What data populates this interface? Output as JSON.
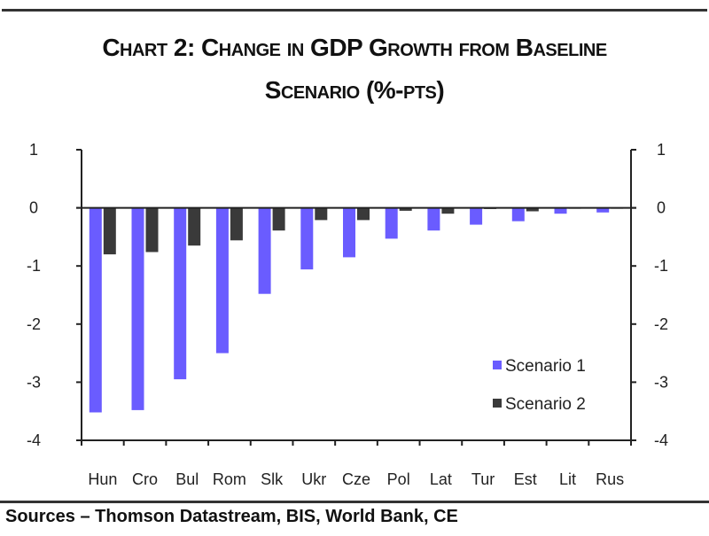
{
  "chart_data": {
    "type": "bar",
    "title": "Chart 2: Change in GDP Growth from Baseline",
    "title_line2": "Scenario (%-pts)",
    "xlabel": "",
    "ylabel": "",
    "ylim": [
      -4,
      1
    ],
    "yticks": [
      1,
      0,
      -1,
      -2,
      -3,
      -4
    ],
    "grid": false,
    "legend_position": "bottom-right",
    "categories": [
      "Hun",
      "Cro",
      "Bul",
      "Rom",
      "Slk",
      "Ukr",
      "Cze",
      "Pol",
      "Lat",
      "Tur",
      "Est",
      "Lit",
      "Rus"
    ],
    "series": [
      {
        "name": "Scenario 1",
        "color": "#6a5cff",
        "values": [
          -3.52,
          -3.48,
          -2.95,
          -2.5,
          -1.48,
          -1.06,
          -0.85,
          -0.53,
          -0.39,
          -0.29,
          -0.23,
          -0.1,
          -0.08
        ]
      },
      {
        "name": "Scenario 2",
        "color": "#3a3a3a",
        "values": [
          -0.8,
          -0.76,
          -0.65,
          -0.56,
          -0.39,
          -0.21,
          -0.21,
          -0.05,
          -0.1,
          -0.02,
          -0.06,
          -0.01,
          -0.01
        ]
      }
    ],
    "source": "Sources – Thomson Datastream, BIS, World Bank, CE"
  }
}
